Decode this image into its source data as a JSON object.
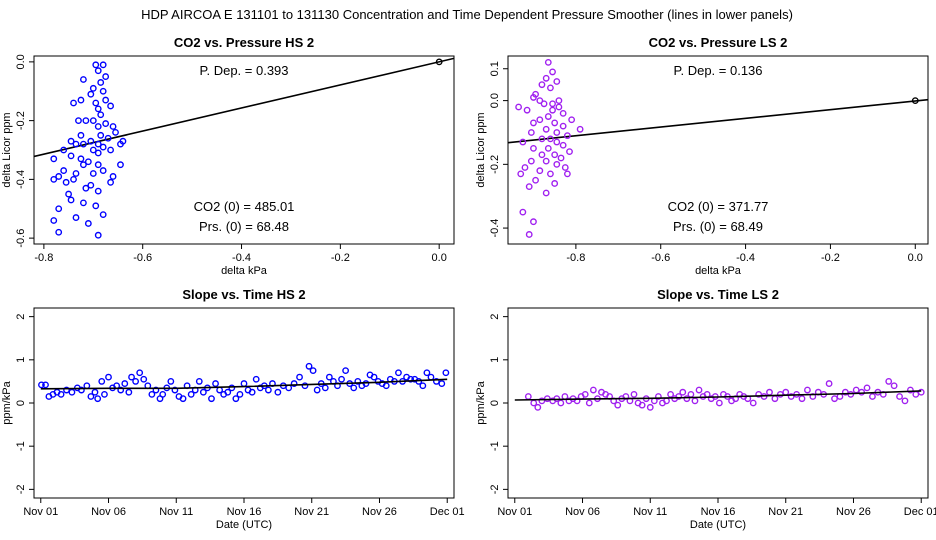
{
  "figure": {
    "title": "HDP    AIRCOA E    131101 to 131130    Concentration and Time Dependent Pressure Smoother (lines in lower panels)"
  },
  "chart_data": [
    {
      "type": "scatter",
      "title": "CO2 vs. Pressure HS 2",
      "xlabel": "delta kPa",
      "ylabel": "delta Licor ppm",
      "xlim": [
        -0.82,
        0.03
      ],
      "ylim": [
        -0.62,
        0.02
      ],
      "xticks": [
        -0.8,
        -0.6,
        -0.4,
        -0.2,
        0.0
      ],
      "xtick_labels": [
        "-0.8",
        "-0.6",
        "-0.4",
        "-0.2",
        "0.0"
      ],
      "yticks": [
        0.0,
        -0.2,
        -0.4,
        -0.6
      ],
      "ytick_labels": [
        "0.0",
        "-0.2",
        "-0.4",
        "-0.6"
      ],
      "color": "#0000ff",
      "annotations": {
        "p_dep": "P. Dep. =  0.393",
        "co2_0": "CO2 (0) =  485.01",
        "prs_0": "Prs. (0) =  68.48"
      },
      "fit_line": {
        "x": [
          -0.82,
          0.03
        ],
        "y": [
          -0.322,
          0.012
        ]
      },
      "reference_point": {
        "x": 0.0,
        "y": 0.0
      },
      "points": [
        [
          -0.695,
          -0.01
        ],
        [
          -0.68,
          -0.01
        ],
        [
          -0.69,
          -0.03
        ],
        [
          -0.675,
          -0.05
        ],
        [
          -0.72,
          -0.06
        ],
        [
          -0.685,
          -0.07
        ],
        [
          -0.7,
          -0.09
        ],
        [
          -0.68,
          -0.1
        ],
        [
          -0.74,
          -0.14
        ],
        [
          -0.725,
          -0.13
        ],
        [
          -0.695,
          -0.14
        ],
        [
          -0.705,
          -0.11
        ],
        [
          -0.675,
          -0.13
        ],
        [
          -0.665,
          -0.15
        ],
        [
          -0.69,
          -0.16
        ],
        [
          -0.685,
          -0.18
        ],
        [
          -0.7,
          -0.2
        ],
        [
          -0.715,
          -0.2
        ],
        [
          -0.675,
          -0.21
        ],
        [
          -0.69,
          -0.22
        ],
        [
          -0.66,
          -0.22
        ],
        [
          -0.655,
          -0.24
        ],
        [
          -0.685,
          -0.25
        ],
        [
          -0.725,
          -0.25
        ],
        [
          -0.67,
          -0.26
        ],
        [
          -0.64,
          -0.27
        ],
        [
          -0.69,
          -0.28
        ],
        [
          -0.705,
          -0.27
        ],
        [
          -0.72,
          -0.28
        ],
        [
          -0.745,
          -0.27
        ],
        [
          -0.735,
          -0.28
        ],
        [
          -0.68,
          -0.29
        ],
        [
          -0.76,
          -0.3
        ],
        [
          -0.7,
          -0.3
        ],
        [
          -0.665,
          -0.3
        ],
        [
          -0.69,
          -0.31
        ],
        [
          -0.745,
          -0.32
        ],
        [
          -0.725,
          -0.33
        ],
        [
          -0.78,
          -0.33
        ],
        [
          -0.71,
          -0.34
        ],
        [
          -0.69,
          -0.35
        ],
        [
          -0.72,
          -0.35
        ],
        [
          -0.76,
          -0.37
        ],
        [
          -0.68,
          -0.37
        ],
        [
          -0.7,
          -0.38
        ],
        [
          -0.735,
          -0.38
        ],
        [
          -0.77,
          -0.39
        ],
        [
          -0.74,
          -0.4
        ],
        [
          -0.665,
          -0.41
        ],
        [
          -0.705,
          -0.42
        ],
        [
          -0.78,
          -0.4
        ],
        [
          -0.755,
          -0.41
        ],
        [
          -0.715,
          -0.43
        ],
        [
          -0.69,
          -0.44
        ],
        [
          -0.75,
          -0.45
        ],
        [
          -0.72,
          -0.48
        ],
        [
          -0.745,
          -0.47
        ],
        [
          -0.695,
          -0.49
        ],
        [
          -0.77,
          -0.5
        ],
        [
          -0.68,
          -0.52
        ],
        [
          -0.735,
          -0.53
        ],
        [
          -0.78,
          -0.54
        ],
        [
          -0.71,
          -0.55
        ],
        [
          -0.77,
          -0.58
        ],
        [
          -0.69,
          -0.59
        ],
        [
          -0.645,
          -0.35
        ],
        [
          -0.66,
          -0.39
        ],
        [
          -0.645,
          -0.28
        ],
        [
          -0.73,
          -0.2
        ]
      ]
    },
    {
      "type": "scatter",
      "title": "CO2 vs. Pressure LS 2",
      "xlabel": "delta kPa",
      "ylabel": "delta Licor ppm",
      "xlim": [
        -0.96,
        0.03
      ],
      "ylim": [
        -0.45,
        0.14
      ],
      "xticks": [
        -0.8,
        -0.6,
        -0.4,
        -0.2,
        0.0
      ],
      "xtick_labels": [
        "-0.8",
        "-0.6",
        "-0.4",
        "-0.2",
        "0.0"
      ],
      "yticks": [
        0.1,
        0.0,
        -0.2,
        -0.4
      ],
      "ytick_labels": [
        "0.1",
        "0.0",
        "-0.2",
        "-0.4"
      ],
      "color": "#a020f0",
      "annotations": {
        "p_dep": "P. Dep. =  0.136",
        "co2_0": "CO2 (0) =  371.77",
        "prs_0": "Prs. (0) =  68.49"
      },
      "fit_line": {
        "x": [
          -0.96,
          0.03
        ],
        "y": [
          -0.132,
          0.003
        ]
      },
      "reference_point": {
        "x": 0.0,
        "y": 0.0
      },
      "points": [
        [
          -0.865,
          0.12
        ],
        [
          -0.855,
          0.09
        ],
        [
          -0.87,
          0.07
        ],
        [
          -0.845,
          0.06
        ],
        [
          -0.88,
          0.05
        ],
        [
          -0.86,
          0.04
        ],
        [
          -0.895,
          0.02
        ],
        [
          -0.885,
          0.0
        ],
        [
          -0.9,
          0.01
        ],
        [
          -0.875,
          -0.01
        ],
        [
          -0.935,
          -0.02
        ],
        [
          -0.915,
          -0.03
        ],
        [
          -0.855,
          -0.03
        ],
        [
          -0.84,
          -0.02
        ],
        [
          -0.83,
          -0.04
        ],
        [
          -0.865,
          -0.05
        ],
        [
          -0.885,
          -0.06
        ],
        [
          -0.9,
          -0.07
        ],
        [
          -0.85,
          -0.07
        ],
        [
          -0.83,
          -0.08
        ],
        [
          -0.87,
          -0.09
        ],
        [
          -0.845,
          -0.1
        ],
        [
          -0.79,
          -0.09
        ],
        [
          -0.905,
          -0.1
        ],
        [
          -0.82,
          -0.11
        ],
        [
          -0.86,
          -0.12
        ],
        [
          -0.88,
          -0.12
        ],
        [
          -0.925,
          -0.13
        ],
        [
          -0.845,
          -0.13
        ],
        [
          -0.83,
          -0.14
        ],
        [
          -0.865,
          -0.15
        ],
        [
          -0.9,
          -0.15
        ],
        [
          -0.815,
          -0.16
        ],
        [
          -0.85,
          -0.17
        ],
        [
          -0.88,
          -0.17
        ],
        [
          -0.835,
          -0.18
        ],
        [
          -0.905,
          -0.19
        ],
        [
          -0.87,
          -0.19
        ],
        [
          -0.845,
          -0.2
        ],
        [
          -0.92,
          -0.21
        ],
        [
          -0.825,
          -0.21
        ],
        [
          -0.885,
          -0.22
        ],
        [
          -0.93,
          -0.23
        ],
        [
          -0.86,
          -0.23
        ],
        [
          -0.895,
          -0.25
        ],
        [
          -0.85,
          -0.26
        ],
        [
          -0.91,
          -0.27
        ],
        [
          -0.87,
          -0.29
        ],
        [
          -0.925,
          -0.35
        ],
        [
          -0.9,
          -0.38
        ],
        [
          -0.91,
          -0.42
        ],
        [
          -0.82,
          -0.23
        ],
        [
          -0.81,
          -0.06
        ],
        [
          -0.84,
          0.0
        ],
        [
          -0.855,
          -0.01
        ]
      ]
    },
    {
      "type": "line",
      "title": "Slope vs. Time HS 2",
      "xlabel": "Date (UTC)",
      "ylabel": "ppm/kPa",
      "xlim": [
        -0.5,
        30.5
      ],
      "ylim": [
        -2.2,
        2.2
      ],
      "xticks": [
        0,
        5,
        10,
        15,
        20,
        25,
        30
      ],
      "xtick_labels": [
        "Nov 01",
        "Nov 06",
        "Nov 11",
        "Nov 16",
        "Nov 21",
        "Nov 26",
        "Dec 01"
      ],
      "yticks": [
        2,
        1,
        0,
        -1,
        -2
      ],
      "ytick_labels": [
        "2",
        "1",
        "0",
        "-1",
        "-2"
      ],
      "color": "#0000ff",
      "smoother": {
        "x": [
          0,
          5,
          10,
          15,
          20,
          25,
          30
        ],
        "y": [
          0.33,
          0.34,
          0.34,
          0.38,
          0.43,
          0.48,
          0.55
        ]
      },
      "x": [
        0.05,
        0.35,
        0.6,
        0.9,
        1.2,
        1.5,
        1.9,
        2.3,
        2.7,
        3.0,
        3.4,
        3.7,
        4.0,
        4.2,
        4.5,
        4.7,
        5.0,
        5.3,
        5.6,
        5.9,
        6.2,
        6.5,
        6.7,
        7.0,
        7.3,
        7.6,
        7.9,
        8.2,
        8.5,
        8.8,
        9.0,
        9.3,
        9.6,
        9.9,
        10.2,
        10.5,
        10.8,
        11.1,
        11.4,
        11.7,
        12.0,
        12.3,
        12.6,
        12.9,
        13.2,
        13.5,
        13.8,
        14.1,
        14.4,
        14.7,
        15.0,
        15.3,
        15.6,
        15.9,
        16.2,
        16.5,
        16.8,
        17.1,
        17.5,
        17.9,
        18.3,
        18.7,
        19.1,
        19.5,
        19.8,
        20.1,
        20.4,
        20.7,
        21.0,
        21.3,
        21.6,
        21.9,
        22.2,
        22.5,
        22.8,
        23.1,
        23.4,
        23.7,
        24.0,
        24.3,
        24.6,
        24.9,
        25.2,
        25.5,
        25.8,
        26.1,
        26.4,
        26.7,
        27.0,
        27.3,
        27.6,
        27.9,
        28.2,
        28.5,
        28.8,
        29.2,
        29.6,
        29.9
      ],
      "y": [
        0.42,
        0.42,
        0.15,
        0.2,
        0.25,
        0.2,
        0.3,
        0.25,
        0.35,
        0.3,
        0.4,
        0.15,
        0.25,
        0.1,
        0.5,
        0.2,
        0.6,
        0.35,
        0.4,
        0.3,
        0.45,
        0.25,
        0.6,
        0.5,
        0.7,
        0.55,
        0.4,
        0.2,
        0.3,
        0.1,
        0.2,
        0.35,
        0.5,
        0.3,
        0.15,
        0.1,
        0.4,
        0.2,
        0.3,
        0.5,
        0.25,
        0.35,
        0.1,
        0.45,
        0.3,
        0.2,
        0.25,
        0.35,
        0.1,
        0.2,
        0.45,
        0.3,
        0.25,
        0.55,
        0.35,
        0.4,
        0.3,
        0.45,
        0.25,
        0.4,
        0.35,
        0.45,
        0.6,
        0.4,
        0.85,
        0.75,
        0.3,
        0.45,
        0.35,
        0.6,
        0.5,
        0.4,
        0.55,
        0.75,
        0.45,
        0.35,
        0.5,
        0.4,
        0.45,
        0.65,
        0.6,
        0.5,
        0.45,
        0.4,
        0.55,
        0.5,
        0.7,
        0.5,
        0.6,
        0.55,
        0.55,
        0.5,
        0.4,
        0.7,
        0.6,
        0.5,
        0.45,
        0.7
      ]
    },
    {
      "type": "line",
      "title": "Slope vs. Time LS 2",
      "xlabel": "Date (UTC)",
      "ylabel": "ppm/kPa",
      "xlim": [
        -0.5,
        30.5
      ],
      "ylim": [
        -2.2,
        2.2
      ],
      "xticks": [
        0,
        5,
        10,
        15,
        20,
        25,
        30
      ],
      "xtick_labels": [
        "Nov 01",
        "Nov 06",
        "Nov 11",
        "Nov 16",
        "Nov 21",
        "Nov 26",
        "Dec 01"
      ],
      "yticks": [
        2,
        1,
        0,
        -1,
        -2
      ],
      "ytick_labels": [
        "2",
        "1",
        "0",
        "-1",
        "-2"
      ],
      "color": "#a020f0",
      "smoother": {
        "x": [
          0,
          5,
          10,
          15,
          20,
          25,
          30
        ],
        "y": [
          0.07,
          0.09,
          0.11,
          0.14,
          0.18,
          0.22,
          0.28
        ]
      },
      "x": [
        1.0,
        1.4,
        1.7,
        2.0,
        2.4,
        2.8,
        3.1,
        3.4,
        3.7,
        4.0,
        4.3,
        4.6,
        4.9,
        5.2,
        5.5,
        5.8,
        6.1,
        6.4,
        6.7,
        7.0,
        7.3,
        7.6,
        7.9,
        8.2,
        8.5,
        8.8,
        9.1,
        9.4,
        9.7,
        10.0,
        10.3,
        10.6,
        10.9,
        11.2,
        11.5,
        11.8,
        12.1,
        12.4,
        12.7,
        13.0,
        13.3,
        13.6,
        13.9,
        14.2,
        14.5,
        14.8,
        15.1,
        15.4,
        15.7,
        16.0,
        16.3,
        16.6,
        16.9,
        17.2,
        17.6,
        18.0,
        18.4,
        18.8,
        19.2,
        19.6,
        20.0,
        20.4,
        20.8,
        21.2,
        21.6,
        22.0,
        22.4,
        22.8,
        23.2,
        23.6,
        24.0,
        24.4,
        24.8,
        25.2,
        25.6,
        26.0,
        26.4,
        26.8,
        27.2,
        27.6,
        28.0,
        28.4,
        28.8,
        29.2,
        29.6,
        30.0
      ],
      "y": [
        0.15,
        0.0,
        -0.1,
        0.05,
        0.1,
        0.05,
        0.1,
        0.0,
        0.15,
        0.05,
        0.1,
        0.05,
        0.15,
        0.2,
        0.0,
        0.3,
        0.1,
        0.25,
        0.2,
        0.15,
        0.05,
        -0.05,
        0.1,
        0.15,
        0.05,
        0.2,
        0.0,
        -0.05,
        0.1,
        -0.1,
        0.05,
        0.15,
        0.0,
        0.05,
        0.2,
        0.1,
        0.15,
        0.25,
        0.1,
        0.2,
        0.05,
        0.3,
        0.15,
        0.2,
        0.1,
        0.15,
        0.0,
        0.2,
        0.15,
        0.05,
        0.1,
        0.2,
        0.15,
        0.1,
        0.0,
        0.2,
        0.15,
        0.25,
        0.1,
        0.2,
        0.25,
        0.15,
        0.2,
        0.1,
        0.3,
        0.15,
        0.25,
        0.2,
        0.45,
        0.1,
        0.15,
        0.25,
        0.2,
        0.3,
        0.25,
        0.35,
        0.15,
        0.25,
        0.2,
        0.5,
        0.4,
        0.15,
        0.05,
        0.3,
        0.2,
        0.25
      ]
    }
  ]
}
